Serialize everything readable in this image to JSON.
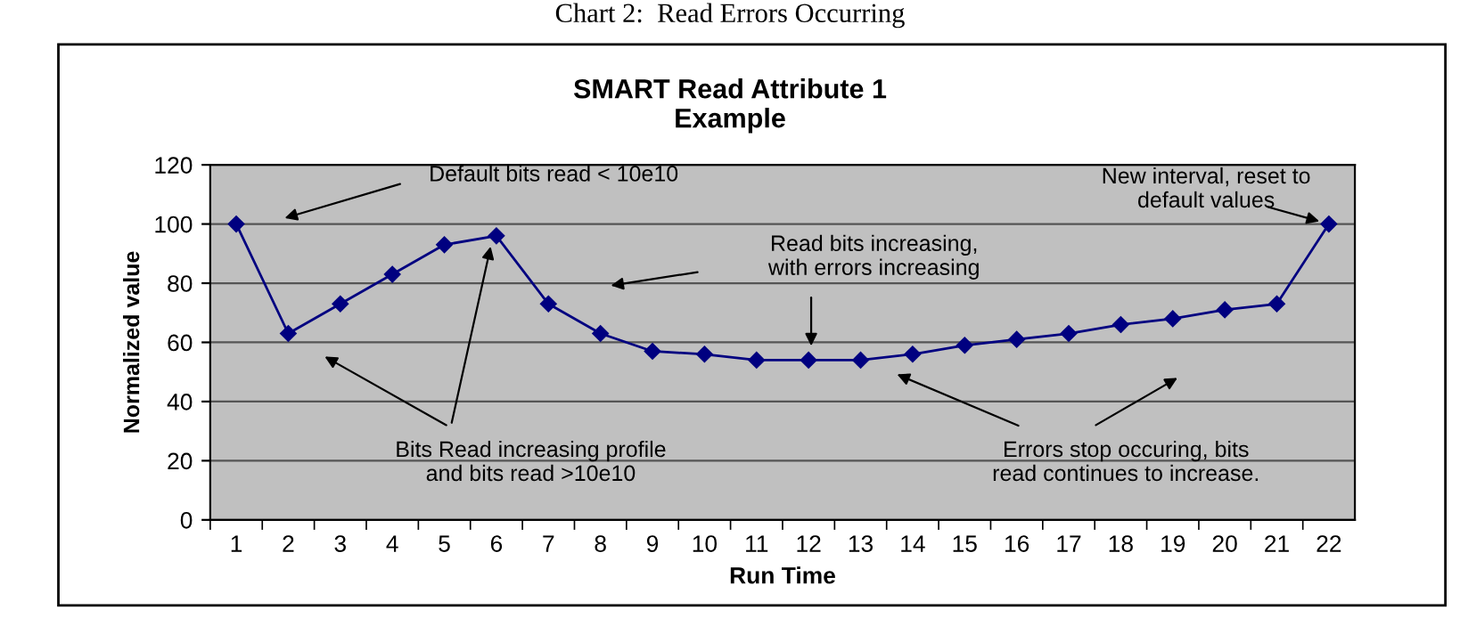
{
  "chart_data": {
    "type": "line",
    "title": "SMART Read Attribute 1\nExample",
    "xlabel": "Run Time",
    "ylabel": "Normalized value",
    "categories": [
      "1",
      "2",
      "3",
      "4",
      "5",
      "6",
      "7",
      "8",
      "9",
      "10",
      "11",
      "12",
      "13",
      "14",
      "15",
      "16",
      "17",
      "18",
      "19",
      "20",
      "21",
      "22"
    ],
    "series": [
      {
        "color": "#000080",
        "values": [
          100,
          63,
          73,
          83,
          93,
          96,
          73,
          63,
          57,
          56,
          54,
          54,
          54,
          56,
          59,
          61,
          63,
          66,
          68,
          71,
          73,
          100
        ]
      }
    ],
    "ylim": [
      0,
      120
    ],
    "yticks": [
      0,
      20,
      40,
      60,
      80,
      100,
      120
    ],
    "grid": "y",
    "marker": "diamond",
    "line_style": "solid",
    "annotations": [
      "Chart 2:  Read Errors Occurring",
      "Default bits read < 10e10",
      "Bits Read increasing profile\nand bits read >10e10",
      "Read bits increasing,\nwith errors increasing",
      "Errors stop occuring, bits\nread continues to increase.",
      {
        "text": "New interval, reset to\ndefault values",
        "x": "22",
        "y": 100
      }
    ]
  }
}
